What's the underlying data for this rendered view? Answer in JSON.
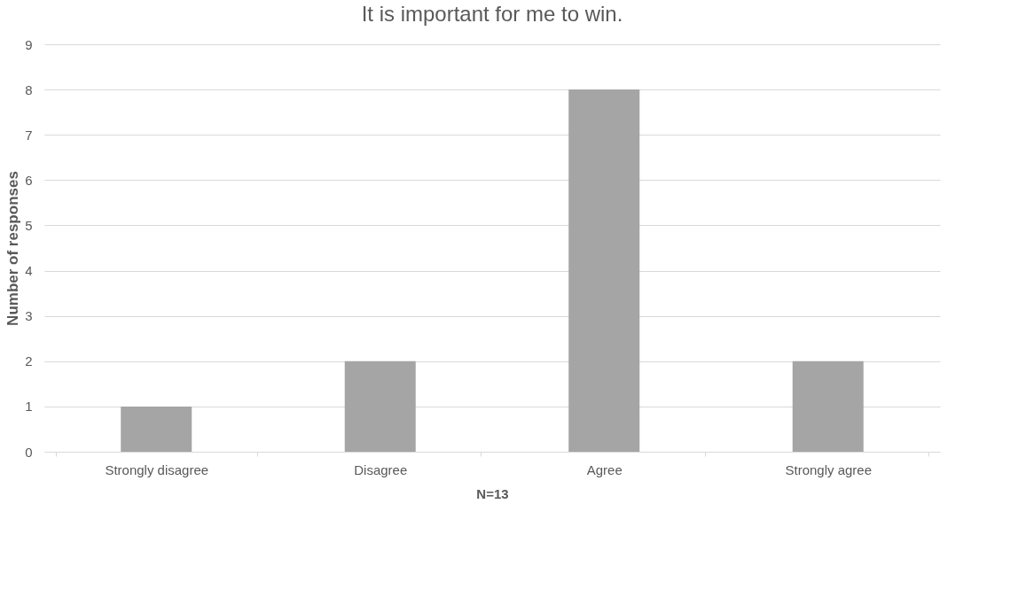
{
  "chart_data": {
    "type": "bar",
    "title": "It is important for me to win.",
    "xlabel": "N=13",
    "ylabel": "Number of responses",
    "categories": [
      "Strongly disagree",
      "Disagree",
      "Agree",
      "Strongly agree"
    ],
    "values": [
      1,
      2,
      8,
      2
    ],
    "color": "#a5a5a5",
    "ylim": [
      0,
      9
    ],
    "yticks": [
      0,
      1,
      2,
      3,
      4,
      5,
      6,
      7,
      8,
      9
    ],
    "grid": "y"
  }
}
